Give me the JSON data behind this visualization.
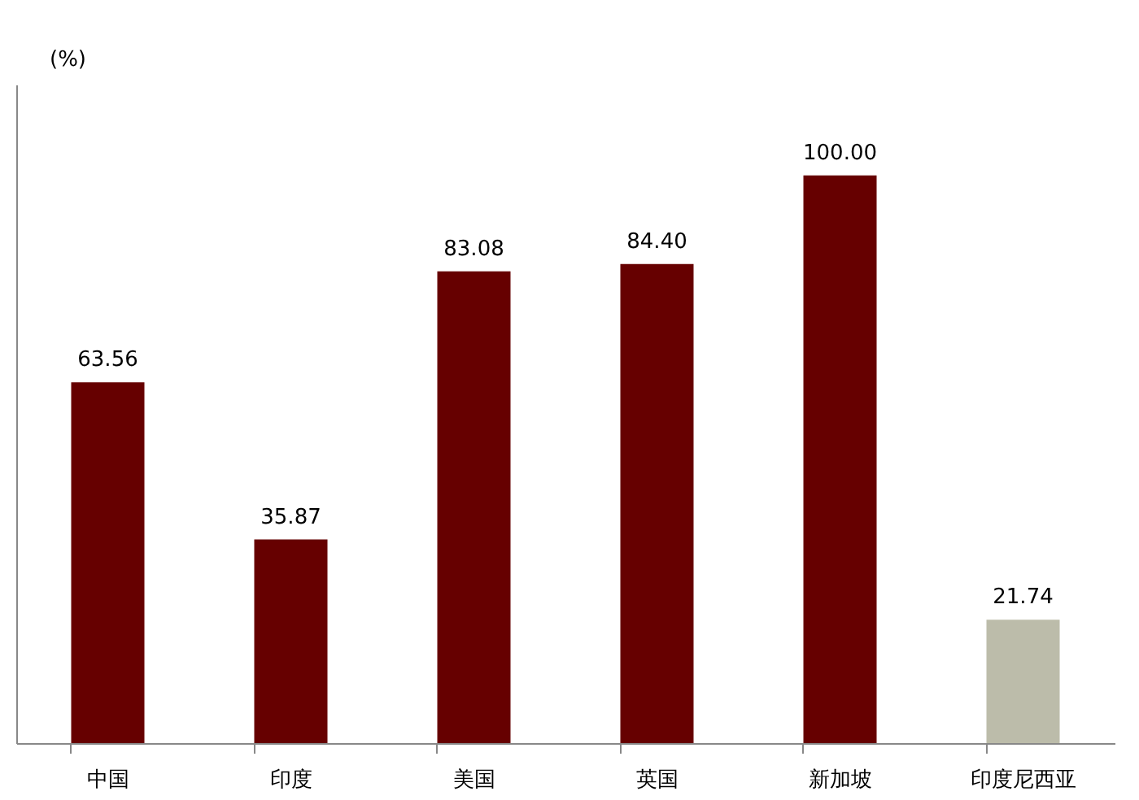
{
  "chart_data": {
    "type": "bar",
    "ylabel": "(%)",
    "categories": [
      "中国",
      "印度",
      "美国",
      "英国",
      "新加坡",
      "印度尼西亚"
    ],
    "values": [
      63.56,
      35.87,
      83.08,
      84.4,
      100.0,
      21.74
    ],
    "value_labels": [
      "63.56",
      "35.87",
      "83.08",
      "84.40",
      "100.00",
      "21.74"
    ],
    "colors": [
      "#660000",
      "#660000",
      "#660000",
      "#660000",
      "#660000",
      "#bcbcaa"
    ],
    "grid": false,
    "legend": false
  }
}
